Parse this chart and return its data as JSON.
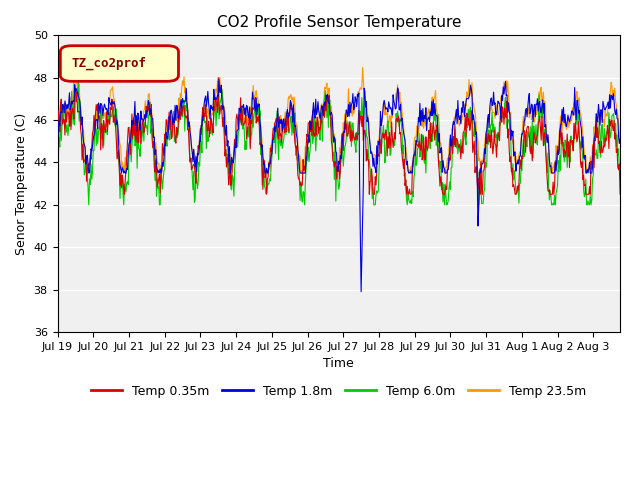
{
  "title": "CO2 Profile Sensor Temperature",
  "xlabel": "Time",
  "ylabel": "Senor Temperature (C)",
  "ylim": [
    36,
    50
  ],
  "yticks": [
    36,
    38,
    40,
    42,
    44,
    46,
    48,
    50
  ],
  "legend_label": "TZ_co2prof",
  "series_names": [
    "Temp 0.35m",
    "Temp 1.8m",
    "Temp 6.0m",
    "Temp 23.5m"
  ],
  "series_colors": [
    "#dd0000",
    "#0000dd",
    "#00cc00",
    "#ff9900"
  ],
  "bg_color": "#ffffff",
  "ax_bg": "#f0f0f0",
  "grid_color": "#ffffff",
  "label_box_bg": "#ffffcc",
  "label_box_edge": "#cc0000",
  "label_text_color": "#880000"
}
